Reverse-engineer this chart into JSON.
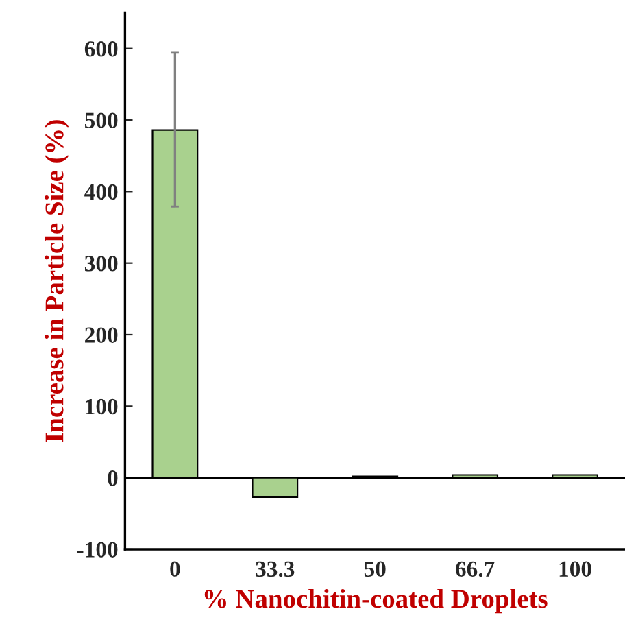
{
  "chart_data": {
    "type": "bar",
    "xlabel": "% Nanochitin-coated Droplets",
    "ylabel": "Increase in Particle Size (%)",
    "categories": [
      "0",
      "33.3",
      "50",
      "66.7",
      "100"
    ],
    "values": [
      486,
      -27,
      2,
      4,
      4
    ],
    "errors": [
      [
        379,
        594
      ],
      null,
      null,
      null,
      null
    ],
    "color": "#a9d18e",
    "ylim": [
      -100,
      650
    ],
    "yticks": [
      -100,
      0,
      100,
      200,
      300,
      400,
      500,
      600
    ],
    "ref_lines": [
      {
        "axis": "y",
        "value": 0,
        "color": "#000000"
      }
    ],
    "grid": false,
    "legend": false
  }
}
